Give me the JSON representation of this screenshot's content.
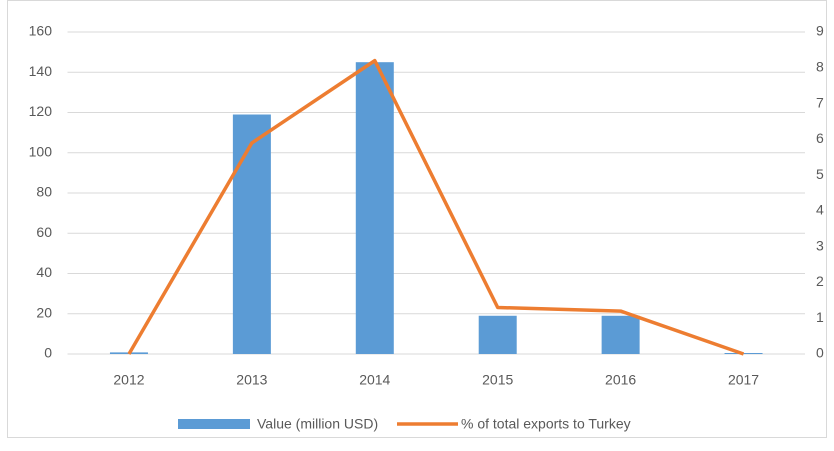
{
  "chart_data": {
    "type": "bar",
    "categories": [
      "2012",
      "2013",
      "2014",
      "2015",
      "2016",
      "2017"
    ],
    "series": [
      {
        "name": "Value (million USD)",
        "type": "bar",
        "color": "#5b9bd5",
        "values": [
          0.8,
          119,
          145,
          19,
          19,
          0.5
        ]
      },
      {
        "name": "% of total exports to Turkey",
        "type": "line",
        "axis": "y2",
        "color": "#ed7d31",
        "values": [
          0,
          5.9,
          8.2,
          1.3,
          1.2,
          0
        ]
      }
    ],
    "ylim": [
      0,
      160
    ],
    "yticks": [
      0,
      20,
      40,
      60,
      80,
      100,
      120,
      140,
      160
    ],
    "y2lim": [
      0,
      9
    ],
    "y2ticks": [
      0,
      1,
      2,
      3,
      4,
      5,
      6,
      7,
      8,
      9
    ],
    "grid": true,
    "legend": "bottom"
  }
}
